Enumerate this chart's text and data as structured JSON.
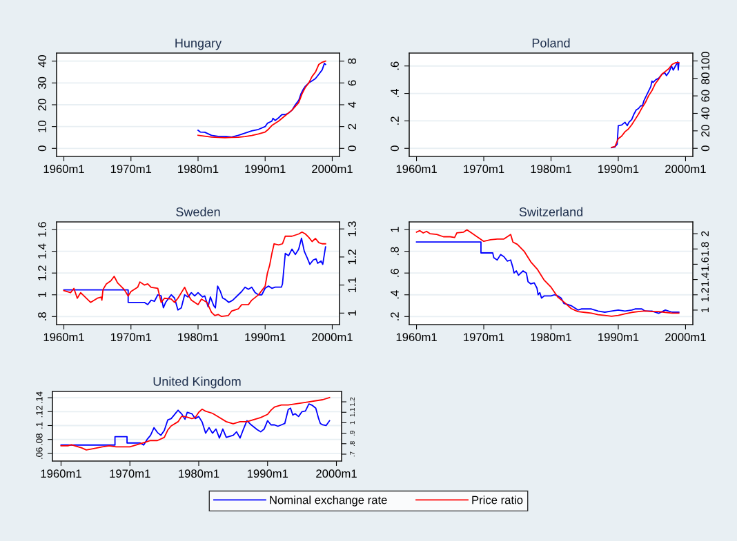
{
  "chart_data": [
    {
      "type": "line",
      "title": "Hungary",
      "xlim": [
        "1958-12",
        "2001-02"
      ],
      "xticks": [
        {
          "value": "1960-01",
          "label": "1960m1"
        },
        {
          "value": "1970-01",
          "label": "1970m1"
        },
        {
          "value": "1980-01",
          "label": "1980m1"
        },
        {
          "value": "1990-01",
          "label": "1990m1"
        },
        {
          "value": "2000-01",
          "label": "2000m1"
        }
      ],
      "ylim": [
        -3.7,
        43.7
      ],
      "yticks": [
        0,
        10,
        20,
        30,
        40
      ],
      "y2lim": [
        -0.74,
        8.74
      ],
      "y2ticks": [
        0,
        2,
        4,
        6,
        8
      ],
      "grid": "y",
      "legend": "bottom",
      "series": [
        {
          "name": "Nominal exchange rate",
          "color": "#0000ff",
          "x": [
            "1980-01",
            "1980-05",
            "1981-01",
            "1982-01",
            "1983-01",
            "1984-01",
            "1985-01",
            "1986-01",
            "1987-01",
            "1988-01",
            "1989-01",
            "1990-01",
            "1990-05",
            "1991-01",
            "1991-03",
            "1991-07",
            "1992-01",
            "1992-07",
            "1993-01",
            "1993-07",
            "1994-01",
            "1994-07",
            "1995-01",
            "1995-05",
            "1995-09",
            "1996-01",
            "1996-07",
            "1997-01",
            "1997-07",
            "1998-01",
            "1998-07",
            "1998-11",
            "1999-01"
          ],
          "values": [
            8.3,
            7.5,
            7.4,
            6.0,
            5.5,
            5.5,
            5.2,
            6.0,
            7.0,
            8.0,
            8.7,
            10.0,
            11.5,
            12.5,
            13.8,
            12.8,
            14.0,
            15.5,
            15.5,
            16.2,
            17.5,
            20,
            22,
            25,
            27,
            28.5,
            30,
            31,
            32,
            34,
            36,
            39,
            38.5
          ]
        },
        {
          "name": "Price ratio",
          "color": "#ff0000",
          "axis": "y2",
          "x": [
            "1980-01",
            "1981-01",
            "1982-01",
            "1983-01",
            "1984-01",
            "1985-01",
            "1986-01",
            "1987-01",
            "1988-01",
            "1989-01",
            "1990-01",
            "1990-07",
            "1991-01",
            "1992-01",
            "1993-01",
            "1994-01",
            "1995-01",
            "1995-07",
            "1996-01",
            "1996-07",
            "1997-01",
            "1997-07",
            "1998-01",
            "1998-07",
            "1999-01"
          ],
          "values": [
            1.2,
            1.12,
            1.04,
            1.0,
            0.98,
            1.0,
            1.02,
            1.08,
            1.18,
            1.32,
            1.5,
            1.76,
            2.1,
            2.5,
            3.0,
            3.5,
            4.2,
            5.0,
            5.6,
            6.0,
            6.6,
            7.0,
            7.7,
            7.9,
            8.0
          ]
        }
      ]
    },
    {
      "type": "line",
      "title": "Poland",
      "xlim": [
        "1958-12",
        "2001-02"
      ],
      "xticks": [
        {
          "value": "1960-01",
          "label": "1960m1"
        },
        {
          "value": "1970-01",
          "label": "1970m1"
        },
        {
          "value": "1980-01",
          "label": "1980m1"
        },
        {
          "value": "1990-01",
          "label": "1990m1"
        },
        {
          "value": "2000-01",
          "label": "2000m1"
        }
      ],
      "ylim": [
        -0.059,
        0.694
      ],
      "yticks": [
        0,
        {
          "value": 0.2,
          "label": ".2"
        },
        {
          "value": 0.4,
          "label": ".4"
        },
        {
          "value": 0.6,
          "label": ".6"
        }
      ],
      "y2lim": [
        -9.3,
        109
      ],
      "y2ticks": [
        0,
        20,
        40,
        60,
        80,
        100
      ],
      "grid": "y",
      "series": [
        {
          "name": "Nominal exchange rate",
          "color": "#0000ff",
          "x": [
            "1989-01",
            "1989-07",
            "1989-11",
            "1990-01",
            "1990-07",
            "1991-01",
            "1991-05",
            "1991-08",
            "1992-01",
            "1992-05",
            "1992-09",
            "1993-01",
            "1993-05",
            "1993-08",
            "1993-11",
            "1994-05",
            "1994-11",
            "1995-01",
            "1995-03",
            "1995-08",
            "1996-01",
            "1996-07",
            "1996-12",
            "1997-03",
            "1997-08",
            "1997-12",
            "1998-03",
            "1998-07",
            "1998-11",
            "1998-12",
            "1999-01"
          ],
          "values": [
            0.005,
            0.01,
            0.03,
            0.165,
            0.17,
            0.19,
            0.165,
            0.19,
            0.21,
            0.25,
            0.28,
            0.29,
            0.31,
            0.31,
            0.35,
            0.4,
            0.45,
            0.49,
            0.48,
            0.5,
            0.51,
            0.54,
            0.55,
            0.53,
            0.56,
            0.6,
            0.57,
            0.6,
            0.63,
            0.57,
            0.62
          ]
        },
        {
          "name": "Price ratio",
          "color": "#ff0000",
          "axis": "y2",
          "x": [
            "1989-01",
            "1989-07",
            "1990-01",
            "1990-07",
            "1991-01",
            "1991-07",
            "1992-01",
            "1992-07",
            "1993-01",
            "1993-07",
            "1994-01",
            "1994-07",
            "1995-01",
            "1995-07",
            "1996-01",
            "1996-07",
            "1997-01",
            "1997-07",
            "1998-01",
            "1998-07",
            "1999-01"
          ],
          "values": [
            1,
            2,
            11,
            14,
            19,
            22,
            27,
            33,
            39,
            46,
            52,
            60,
            66,
            74,
            79,
            85,
            88,
            91,
            96,
            98,
            98
          ]
        }
      ]
    },
    {
      "type": "line",
      "title": "Sweden",
      "xlim": [
        "1958-12",
        "2001-02"
      ],
      "xticks": [
        {
          "value": "1960-01",
          "label": "1960m1"
        },
        {
          "value": "1970-01",
          "label": "1970m1"
        },
        {
          "value": "1980-01",
          "label": "1980m1"
        },
        {
          "value": "1990-01",
          "label": "1990m1"
        },
        {
          "value": "2000-01",
          "label": "2000m1"
        }
      ],
      "ylim": [
        0.726,
        1.67
      ],
      "yticks": [
        {
          "value": 0.8,
          "label": ".8"
        },
        1,
        1.2,
        1.4,
        1.6
      ],
      "y2lim": [
        0.959,
        1.325
      ],
      "y2ticks": [
        1,
        1.1,
        1.2,
        1.3
      ],
      "grid": "y",
      "series": [
        {
          "name": "Nominal exchange rate",
          "color": "#0000ff",
          "x": [
            "1960-01",
            "1969-08",
            "1969-08",
            "1972-01",
            "1972-07",
            "1973-01",
            "1973-07",
            "1974-01",
            "1974-07",
            "1974-11",
            "1975-03",
            "1976-01",
            "1976-07",
            "1977-01",
            "1977-07",
            "1978-01",
            "1978-07",
            "1979-01",
            "1979-07",
            "1980-01",
            "1980-09",
            "1981-01",
            "1981-07",
            "1981-11",
            "1982-05",
            "1982-08",
            "1982-12",
            "1983-05",
            "1983-09",
            "1984-01",
            "1984-08",
            "1985-03",
            "1986-01",
            "1986-07",
            "1987-01",
            "1987-07",
            "1988-01",
            "1988-07",
            "1989-01",
            "1989-07",
            "1990-01",
            "1990-07",
            "1991-01",
            "1991-07",
            "1992-06",
            "1992-08",
            "1993-01",
            "1993-07",
            "1994-01",
            "1994-07",
            "1995-01",
            "1995-06",
            "1995-11",
            "1996-05",
            "1996-09",
            "1997-03",
            "1997-08",
            "1997-11",
            "1998-05",
            "1998-08",
            "1999-01"
          ],
          "values": [
            1.045,
            1.045,
            0.93,
            0.93,
            0.91,
            0.95,
            0.94,
            1.0,
            0.99,
            0.88,
            0.93,
            1.0,
            0.97,
            0.86,
            0.88,
            1.0,
            0.98,
            1.02,
            0.99,
            1.02,
            0.98,
            0.99,
            0.89,
            0.98,
            0.9,
            0.88,
            1.08,
            1.03,
            0.97,
            0.96,
            0.93,
            0.95,
            1.0,
            1.03,
            1.07,
            1.05,
            1.07,
            1.02,
            1.0,
            1.0,
            1.06,
            1.08,
            1.06,
            1.07,
            1.07,
            1.1,
            1.38,
            1.36,
            1.42,
            1.37,
            1.42,
            1.52,
            1.4,
            1.33,
            1.28,
            1.32,
            1.33,
            1.29,
            1.31,
            1.28,
            1.44
          ]
        },
        {
          "name": "Price ratio",
          "color": "#ff0000",
          "axis": "y2",
          "x": [
            "1960-01",
            "1961-01",
            "1961-07",
            "1962-01",
            "1962-07",
            "1963-01",
            "1964-01",
            "1965-01",
            "1965-08",
            "1965-09",
            "1965-11",
            "1966-05",
            "1967-01",
            "1967-07",
            "1968-01",
            "1969-01",
            "1969-08",
            "1970-01",
            "1971-01",
            "1971-05",
            "1972-01",
            "1972-07",
            "1973-01",
            "1974-01",
            "1974-07",
            "1975-01",
            "1976-01",
            "1976-07",
            "1977-01",
            "1978-01",
            "1978-07",
            "1979-01",
            "1980-01",
            "1980-07",
            "1981-05",
            "1982-01",
            "1982-07",
            "1983-01",
            "1983-07",
            "1984-07",
            "1985-01",
            "1986-01",
            "1986-07",
            "1987-07",
            "1988-01",
            "1989-01",
            "1990-01",
            "1990-05",
            "1990-09",
            "1991-01",
            "1991-05",
            "1992-01",
            "1992-08",
            "1993-01",
            "1994-01",
            "1995-01",
            "1995-07",
            "1996-01",
            "1996-07",
            "1997-01",
            "1997-07",
            "1998-01",
            "1998-07",
            "1999-01"
          ],
          "values": [
            1.08,
            1.073,
            1.088,
            1.053,
            1.073,
            1.061,
            1.038,
            1.053,
            1.057,
            1.046,
            1.084,
            1.104,
            1.115,
            1.131,
            1.108,
            1.084,
            1.061,
            1.077,
            1.092,
            1.111,
            1.1,
            1.104,
            1.092,
            1.088,
            1.038,
            1.053,
            1.05,
            1.038,
            1.053,
            1.092,
            1.065,
            1.046,
            1.03,
            1.05,
            1.038,
            1.003,
            0.991,
            0.995,
            0.988,
            0.991,
            1.007,
            1.015,
            1.03,
            1.03,
            1.046,
            1.065,
            1.096,
            1.142,
            1.17,
            1.212,
            1.247,
            1.243,
            1.247,
            1.274,
            1.274,
            1.282,
            1.289,
            1.282,
            1.27,
            1.255,
            1.266,
            1.251,
            1.247,
            1.247
          ]
        }
      ]
    },
    {
      "type": "line",
      "title": "Switzerland",
      "xlim": [
        "1958-12",
        "2001-02"
      ],
      "xticks": [
        {
          "value": "1960-01",
          "label": "1960m1"
        },
        {
          "value": "1970-01",
          "label": "1970m1"
        },
        {
          "value": "1980-01",
          "label": "1980m1"
        },
        {
          "value": "1990-01",
          "label": "1990m1"
        },
        {
          "value": "2000-01",
          "label": "2000m1"
        }
      ],
      "ylim": [
        0.126,
        1.07
      ],
      "yticks": [
        {
          "value": 0.2,
          "label": ".2"
        },
        {
          "value": 0.4,
          "label": ".4"
        },
        {
          "value": 0.6,
          "label": ".6"
        },
        {
          "value": 0.8,
          "label": ".8"
        },
        1
      ],
      "y2lim": [
        0.81,
        2.154
      ],
      "y2ticks": [
        1,
        1.2,
        1.4,
        1.6,
        1.8,
        2
      ],
      "grid": "y",
      "series": [
        {
          "name": "Nominal exchange rate",
          "color": "#0000ff",
          "x": [
            "1960-01",
            "1969-08",
            "1969-08",
            "1971-05",
            "1971-07",
            "1972-01",
            "1972-07",
            "1973-01",
            "1973-07",
            "1974-01",
            "1974-05",
            "1974-07",
            "1974-11",
            "1975-03",
            "1975-11",
            "1976-05",
            "1976-08",
            "1977-01",
            "1977-07",
            "1977-12",
            "1978-02",
            "1978-05",
            "1978-08",
            "1979-01",
            "1980-01",
            "1980-07",
            "1981-01",
            "1981-07",
            "1981-12",
            "1982-07",
            "1983-01",
            "1984-01",
            "1984-07",
            "1985-01",
            "1986-01",
            "1987-01",
            "1988-01",
            "1989-01",
            "1990-01",
            "1991-01",
            "1992-01",
            "1992-07",
            "1993-07",
            "1994-01",
            "1995-01",
            "1996-01",
            "1997-01",
            "1998-01",
            "1999-01"
          ],
          "values": [
            0.885,
            0.885,
            0.785,
            0.785,
            0.74,
            0.72,
            0.77,
            0.75,
            0.71,
            0.72,
            0.65,
            0.6,
            0.62,
            0.58,
            0.62,
            0.6,
            0.52,
            0.5,
            0.51,
            0.46,
            0.4,
            0.42,
            0.37,
            0.39,
            0.39,
            0.4,
            0.39,
            0.37,
            0.32,
            0.31,
            0.3,
            0.26,
            0.27,
            0.27,
            0.27,
            0.25,
            0.24,
            0.25,
            0.26,
            0.25,
            0.26,
            0.27,
            0.27,
            0.25,
            0.25,
            0.23,
            0.26,
            0.24,
            0.24
          ]
        },
        {
          "name": "Price ratio",
          "color": "#ff0000",
          "axis": "y2",
          "x": [
            "1960-01",
            "1960-07",
            "1961-01",
            "1961-07",
            "1962-01",
            "1963-01",
            "1964-01",
            "1965-01",
            "1965-09",
            "1966-01",
            "1967-01",
            "1967-07",
            "1968-01",
            "1969-01",
            "1970-01",
            "1971-01",
            "1972-01",
            "1973-01",
            "1973-07",
            "1974-01",
            "1974-05",
            "1975-01",
            "1976-01",
            "1977-01",
            "1978-01",
            "1979-01",
            "1980-01",
            "1981-01",
            "1982-01",
            "1983-01",
            "1984-01",
            "1985-01",
            "1986-01",
            "1987-01",
            "1988-01",
            "1989-01",
            "1990-01",
            "1991-01",
            "1992-01",
            "1993-01",
            "1994-01",
            "1995-01",
            "1996-01",
            "1997-01",
            "1998-01",
            "1999-01"
          ],
          "values": [
            2.02,
            2.04,
            2.01,
            2.03,
            2.0,
            1.99,
            1.96,
            1.96,
            1.95,
            2.01,
            2.02,
            2.05,
            2.02,
            1.96,
            1.9,
            1.92,
            1.93,
            1.93,
            1.96,
            1.99,
            1.89,
            1.86,
            1.77,
            1.63,
            1.53,
            1.39,
            1.3,
            1.17,
            1.1,
            1.02,
            0.98,
            0.97,
            0.96,
            0.94,
            0.93,
            0.92,
            0.93,
            0.95,
            0.97,
            0.98,
            0.99,
            0.98,
            0.98,
            0.97,
            0.96,
            0.96
          ]
        }
      ]
    },
    {
      "type": "line",
      "title": "United Kingdom",
      "xlim": [
        "1958-10",
        "2000-10"
      ],
      "xticks": [
        {
          "value": "1960-01",
          "label": "1960m1"
        },
        {
          "value": "1970-01",
          "label": "1970m1"
        },
        {
          "value": "1980-01",
          "label": "1980m1"
        },
        {
          "value": "1990-01",
          "label": "1990m1"
        },
        {
          "value": "2000-01",
          "label": "2000m1"
        }
      ],
      "ylim": [
        0.049,
        0.149
      ],
      "yticks": [
        {
          "value": 0.06,
          "label": ".06"
        },
        {
          "value": 0.08,
          "label": ".08"
        },
        {
          "value": 0.1,
          "label": ".1"
        },
        {
          "value": 0.12,
          "label": ".12"
        },
        {
          "value": 0.14,
          "label": ".14"
        }
      ],
      "y2lim": [
        0.634,
        1.299
      ],
      "y2ticks": [
        {
          "value": 0.7,
          "label": ".7"
        },
        {
          "value": 0.8,
          "label": ".8"
        },
        {
          "value": 0.9,
          "label": ".9"
        },
        1,
        1.1,
        1.2
      ],
      "grid": "y",
      "series": [
        {
          "name": "Nominal exchange rate",
          "color": "#0000ff",
          "x": [
            "1960-01",
            "1967-11",
            "1967-11",
            "1969-08",
            "1969-08",
            "1971-07",
            "1972-01",
            "1972-07",
            "1973-01",
            "1973-07",
            "1974-01",
            "1974-07",
            "1975-01",
            "1975-07",
            "1976-01",
            "1976-07",
            "1977-01",
            "1977-07",
            "1978-01",
            "1978-05",
            "1979-01",
            "1979-07",
            "1980-01",
            "1980-07",
            "1981-01",
            "1981-07",
            "1982-01",
            "1982-07",
            "1983-01",
            "1983-07",
            "1984-01",
            "1985-01",
            "1985-07",
            "1986-01",
            "1986-07",
            "1987-01",
            "1987-07",
            "1988-01",
            "1988-07",
            "1989-01",
            "1989-07",
            "1990-01",
            "1990-07",
            "1991-01",
            "1991-07",
            "1992-01",
            "1992-07",
            "1993-01",
            "1993-05",
            "1993-09",
            "1994-01",
            "1994-07",
            "1995-01",
            "1995-07",
            "1996-01",
            "1996-07",
            "1997-01",
            "1997-06",
            "1997-09",
            "1998-01",
            "1998-07",
            "1999-01"
          ],
          "values": [
            0.072,
            0.072,
            0.084,
            0.084,
            0.075,
            0.075,
            0.072,
            0.08,
            0.086,
            0.097,
            0.09,
            0.086,
            0.093,
            0.108,
            0.11,
            0.116,
            0.122,
            0.117,
            0.109,
            0.119,
            0.117,
            0.11,
            0.113,
            0.105,
            0.089,
            0.097,
            0.089,
            0.095,
            0.082,
            0.095,
            0.083,
            0.086,
            0.091,
            0.082,
            0.095,
            0.107,
            0.102,
            0.098,
            0.094,
            0.091,
            0.095,
            0.107,
            0.101,
            0.101,
            0.099,
            0.101,
            0.103,
            0.123,
            0.125,
            0.115,
            0.117,
            0.113,
            0.12,
            0.121,
            0.131,
            0.129,
            0.125,
            0.11,
            0.103,
            0.101,
            0.1,
            0.107
          ]
        },
        {
          "name": "Price ratio",
          "color": "#ff0000",
          "axis": "y2",
          "x": [
            "1960-01",
            "1961-01",
            "1961-07",
            "1962-01",
            "1963-01",
            "1963-09",
            "1964-07",
            "1966-01",
            "1967-01",
            "1968-01",
            "1969-01",
            "1970-01",
            "1971-01",
            "1972-01",
            "1973-01",
            "1974-01",
            "1975-01",
            "1975-07",
            "1976-01",
            "1977-01",
            "1977-07",
            "1978-01",
            "1979-01",
            "1979-07",
            "1980-01",
            "1980-07",
            "1981-01",
            "1982-01",
            "1983-01",
            "1984-01",
            "1985-01",
            "1986-01",
            "1987-01",
            "1988-01",
            "1989-01",
            "1990-01",
            "1990-07",
            "1991-01",
            "1992-01",
            "1993-01",
            "1994-01",
            "1995-01",
            "1996-01",
            "1997-01",
            "1998-01",
            "1999-01"
          ],
          "values": [
            0.78,
            0.78,
            0.79,
            0.78,
            0.76,
            0.74,
            0.75,
            0.77,
            0.78,
            0.77,
            0.77,
            0.77,
            0.79,
            0.81,
            0.83,
            0.83,
            0.86,
            0.93,
            0.97,
            1.01,
            1.06,
            1.06,
            1.04,
            1.05,
            1.1,
            1.13,
            1.11,
            1.09,
            1.05,
            1.01,
            0.99,
            1.01,
            1.01,
            1.03,
            1.05,
            1.08,
            1.12,
            1.15,
            1.17,
            1.17,
            1.18,
            1.19,
            1.2,
            1.21,
            1.22,
            1.24
          ]
        }
      ]
    }
  ]
}
